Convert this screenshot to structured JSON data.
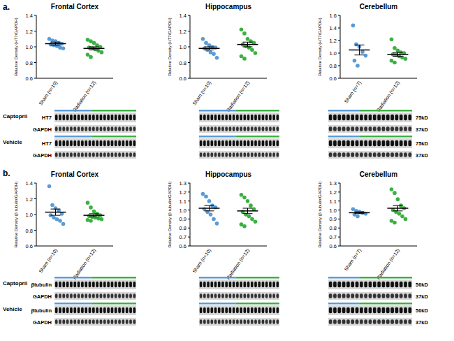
{
  "chart_data": [
    {
      "type": "scatter",
      "title": "Frontal Cortex",
      "y_label": "Relative Density (HT7/GAPDH)",
      "categories": [
        "Sham (n=10)",
        "Radiation (n=12)"
      ],
      "colors": [
        "#5b9bd5",
        "#3cb043"
      ],
      "marker": "circle",
      "values": [
        [
          1.1,
          1.08,
          1.07,
          1.05,
          1.04,
          1.03,
          1.02,
          1.01,
          0.99,
          0.98
        ],
        [
          1.09,
          1.07,
          1.05,
          1.02,
          1.0,
          0.99,
          0.98,
          0.97,
          0.95,
          0.93,
          0.9,
          0.87
        ]
      ],
      "means": [
        1.04,
        0.98
      ],
      "sems": [
        0.02,
        0.02
      ],
      "ylim": [
        0.6,
        1.4
      ],
      "yticks": [
        0.6,
        0.8,
        {
          "value": 1,
          "label": "1.0"
        },
        1.2,
        1.4
      ]
    },
    {
      "type": "scatter",
      "title": "Hippocampus",
      "y_label": "Relative Density (HT7/GAPDH)",
      "categories": [
        "Sham (n=10)",
        "Radiation (n=12)"
      ],
      "colors": [
        "#5b9bd5",
        "#3cb043"
      ],
      "marker": "circle",
      "values": [
        [
          1.1,
          1.05,
          1.02,
          1.0,
          0.99,
          0.98,
          0.96,
          0.93,
          0.91,
          0.86
        ],
        [
          1.22,
          1.17,
          1.1,
          1.07,
          1.05,
          1.03,
          1.01,
          0.99,
          0.96,
          0.92,
          0.88,
          0.85
        ]
      ],
      "means": [
        0.98,
        1.03
      ],
      "sems": [
        0.02,
        0.03
      ],
      "ylim": [
        0.6,
        1.4
      ],
      "yticks": [
        0.6,
        0.8,
        {
          "value": 1,
          "label": "1.0"
        },
        1.2,
        1.4
      ]
    },
    {
      "type": "scatter",
      "title": "Cerebellum",
      "y_label": "Relative Density (HT7/GAPDH)",
      "categories": [
        "Sham (n=7)",
        "Radiation (n=12)"
      ],
      "colors": [
        "#5b9bd5",
        "#3cb043"
      ],
      "marker": "circle",
      "values": [
        [
          1.44,
          1.14,
          1.1,
          1.02,
          0.96,
          0.88,
          0.8
        ],
        [
          1.22,
          1.08,
          1.04,
          1.01,
          1.0,
          0.98,
          0.97,
          0.95,
          0.93,
          0.91,
          0.88,
          0.85
        ]
      ],
      "means": [
        1.05,
        0.98
      ],
      "sems": [
        0.08,
        0.03
      ],
      "ylim": [
        0.6,
        1.6
      ],
      "yticks": [
        0.6,
        0.8,
        {
          "value": 1,
          "label": "1.0"
        },
        1.2,
        1.4,
        1.6
      ]
    },
    {
      "type": "scatter",
      "title": "Frontal Cortex",
      "y_label": "Relative Density (β tubulin/GAPDH)",
      "categories": [
        "Sham (n=10)",
        "Radiation (n=12)"
      ],
      "colors": [
        "#5b9bd5",
        "#3cb043"
      ],
      "marker": "circle",
      "values": [
        [
          1.36,
          1.12,
          1.08,
          1.05,
          1.01,
          0.99,
          0.96,
          0.94,
          0.92,
          0.88
        ],
        [
          1.15,
          1.09,
          1.04,
          1.01,
          0.99,
          0.98,
          0.97,
          0.96,
          0.95,
          0.94,
          0.93,
          0.92
        ]
      ],
      "means": [
        1.03,
        0.99
      ],
      "sems": [
        0.04,
        0.02
      ],
      "ylim": [
        0.6,
        1.4
      ],
      "yticks": [
        0.6,
        0.8,
        {
          "value": 1,
          "label": "1.0"
        },
        1.2,
        1.4
      ]
    },
    {
      "type": "scatter",
      "title": "Hippocampus",
      "y_label": "Relative Density (β tubulin/GAPDH)",
      "categories": [
        "Sham (n=10)",
        "Radiation (n=12)"
      ],
      "colors": [
        "#5b9bd5",
        "#3cb043"
      ],
      "marker": "circle",
      "values": [
        [
          1.18,
          1.15,
          1.1,
          1.05,
          1.03,
          1.01,
          0.98,
          0.95,
          0.9,
          0.85
        ],
        [
          1.17,
          1.14,
          1.1,
          1.05,
          1.01,
          0.98,
          0.95,
          0.93,
          0.9,
          0.87,
          0.84,
          0.82
        ]
      ],
      "means": [
        1.02,
        0.99
      ],
      "sems": [
        0.03,
        0.03
      ],
      "ylim": [
        0.6,
        1.3
      ],
      "yticks": [
        0.6,
        0.7,
        0.8,
        0.9,
        {
          "value": 1,
          "label": "1.0"
        },
        1.1,
        1.2,
        1.3
      ]
    },
    {
      "type": "scatter",
      "title": "Cerebellum",
      "y_label": "Relative Density (β tubulin/GAPDH)",
      "categories": [
        "Sham (n=7)",
        "Radiation (n=12)"
      ],
      "colors": [
        "#5b9bd5",
        "#3cb043"
      ],
      "marker": "circle",
      "values": [
        [
          1.01,
          0.99,
          0.98,
          0.97,
          0.96,
          0.95,
          0.93
        ],
        [
          1.23,
          1.19,
          1.12,
          1.05,
          1.02,
          1.0,
          0.98,
          0.96,
          0.93,
          0.9,
          0.88,
          0.86
        ]
      ],
      "means": [
        0.97,
        1.02
      ],
      "sems": [
        0.01,
        0.03
      ],
      "ylim": [
        0.6,
        1.3
      ],
      "yticks": [
        0.6,
        0.7,
        0.8,
        0.9,
        {
          "value": 1,
          "label": "1.0"
        },
        1.1,
        1.2,
        1.3
      ]
    }
  ],
  "panels": [
    {
      "label": "a.",
      "blot_rows": [
        {
          "group": "Captopril",
          "protein": "HT7",
          "size": "75kD"
        },
        {
          "protein": "GAPDH",
          "size": "37kD"
        },
        {
          "group": "Vehicle",
          "protein": "HT7",
          "size": "75kD"
        },
        {
          "protein": "GAPDH",
          "size": "37kD"
        }
      ]
    },
    {
      "label": "b.",
      "blot_rows": [
        {
          "group": "Captopril",
          "protein": "βtubulin",
          "size": "50kD"
        },
        {
          "protein": "GAPDH",
          "size": "37kD"
        },
        {
          "group": "Vehicle",
          "protein": "βtubulin",
          "size": "50kD"
        },
        {
          "protein": "GAPDH",
          "size": "37kD"
        }
      ]
    }
  ]
}
